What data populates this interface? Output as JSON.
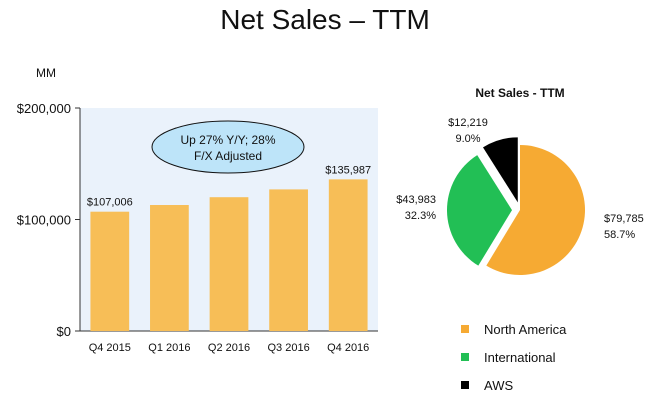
{
  "page": {
    "title": "Net Sales – TTM",
    "unit": "MM"
  },
  "chart_data": [
    {
      "type": "bar",
      "categories": [
        "Q4 2015",
        "Q1 2016",
        "Q2 2016",
        "Q3 2016",
        "Q4 2016"
      ],
      "values": [
        107006,
        113000,
        120000,
        127000,
        135987
      ],
      "data_labels": [
        "$107,006",
        "",
        "",
        "",
        "$135,987"
      ],
      "ylim": [
        0,
        200000
      ],
      "yticks": [
        0,
        100000,
        200000
      ],
      "ytick_labels": [
        "$0",
        "$100,000",
        "$200,000"
      ],
      "ylabel": "MM",
      "annotation": [
        "Up 27% Y/Y; 28%",
        "F/X Adjusted"
      ],
      "colors": {
        "bar": "#F7BE57",
        "plot_bg": "#EAF2FB",
        "callout_fill": "#BDE4F9"
      }
    },
    {
      "type": "pie",
      "title": "Net Sales - TTM",
      "slices": [
        {
          "label": "North America",
          "value": 79785,
          "value_label": "$79,785",
          "percent_label": "58.7%",
          "color": "#F6AA33"
        },
        {
          "label": "International",
          "value": 43983,
          "value_label": "$43,983",
          "percent_label": "32.3%",
          "color": "#22BF55"
        },
        {
          "label": "AWS",
          "value": 12219,
          "value_label": "$12,219",
          "percent_label": "9.0%",
          "color": "#000000"
        }
      ]
    }
  ]
}
